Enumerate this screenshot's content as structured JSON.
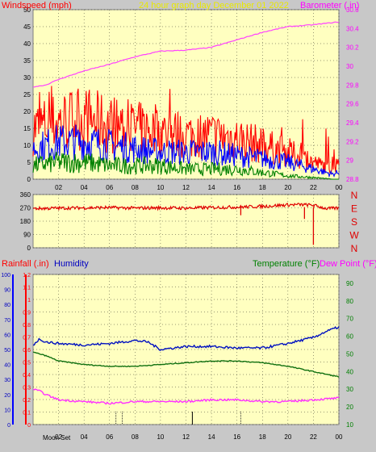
{
  "header": {
    "title": "24 hour graph day   December 01 2022",
    "windspeed_label": "Windspeed (mph)",
    "barometer_label": "Barometer (.in)"
  },
  "lower_header": {
    "rainfall_label": "Rainfall (.in)",
    "humidity_label": "Humidity",
    "temperature_label": "Temperature (°F)",
    "dewpoint_label": "Dew Point (°F)",
    "moon_label": "Moon Set"
  },
  "colors": {
    "plot_bg": "#ffffc0",
    "page_bg": "#c8c8c8",
    "wind_gust": "#ff0000",
    "wind_avg": "#0000ff",
    "wind_min": "#008000",
    "barometer": "#ff40ff",
    "wind_dir": "#e00000",
    "humidity": "#0010c0",
    "temperature": "#107010",
    "dewpoint": "#ff30ff",
    "rain_axis": "#ff0000",
    "grid": "#000000",
    "tick_label": "#000000"
  },
  "chart_data": [
    {
      "type": "line",
      "title": "24 hour graph day   December 01 2022",
      "xlabel": "",
      "x_tick_labels": [
        "02",
        "04",
        "06",
        "08",
        "10",
        "12",
        "14",
        "16",
        "18",
        "20",
        "22",
        "00"
      ],
      "x_hours": [
        2,
        4,
        6,
        8,
        10,
        12,
        14,
        16,
        18,
        20,
        22,
        24
      ],
      "xlim": [
        0,
        24
      ],
      "left_axis": {
        "label": "Windspeed (mph)",
        "ylim": [
          0,
          50
        ],
        "ticks": [
          0,
          5,
          10,
          15,
          20,
          25,
          30,
          35,
          40,
          45,
          50
        ]
      },
      "right_axis": {
        "label": "Barometer (.in)",
        "ylim": [
          28.8,
          30.6
        ],
        "ticks": [
          28.8,
          29,
          29.2,
          29.4,
          29.6,
          29.8,
          30,
          30.2,
          30.4,
          30.6
        ]
      },
      "series": [
        {
          "name": "Windspeed gust",
          "axis": "left",
          "color": "#ff0000",
          "hours": [
            0,
            2,
            4,
            6,
            8,
            10,
            12,
            14,
            16,
            18,
            20,
            22,
            23.5,
            24
          ],
          "values": [
            15,
            17,
            18,
            16,
            15,
            14,
            13,
            13,
            12,
            10,
            8,
            5,
            3,
            4
          ]
        },
        {
          "name": "Windspeed average",
          "axis": "left",
          "color": "#0000ff",
          "hours": [
            0,
            2,
            4,
            6,
            8,
            10,
            12,
            14,
            16,
            18,
            20,
            22,
            23.5,
            24
          ],
          "values": [
            9,
            11,
            11,
            10,
            9,
            8,
            8,
            8,
            7,
            6,
            5,
            3,
            1.5,
            2
          ]
        },
        {
          "name": "Windspeed minimum",
          "axis": "left",
          "color": "#008000",
          "hours": [
            0,
            2,
            4,
            6,
            8,
            10,
            12,
            14,
            16,
            18,
            20,
            22,
            23.5,
            24
          ],
          "values": [
            4,
            5,
            5,
            4,
            4,
            4,
            3,
            3,
            3,
            2,
            1,
            0.5,
            0,
            0
          ]
        },
        {
          "name": "Barometer",
          "axis": "right",
          "color": "#ff40ff",
          "hours": [
            0,
            1,
            2,
            4,
            6,
            8,
            10,
            12,
            14,
            16,
            18,
            20,
            22,
            24
          ],
          "values": [
            29.78,
            29.8,
            29.86,
            29.95,
            30.02,
            30.1,
            30.16,
            30.17,
            30.2,
            30.28,
            30.36,
            30.42,
            30.44,
            30.47
          ]
        }
      ]
    },
    {
      "type": "line",
      "xlim": [
        0,
        24
      ],
      "left_ticks": [
        0,
        90,
        180,
        270,
        360
      ],
      "right_labels": [
        "N",
        "W",
        "S",
        "E",
        "N"
      ],
      "ylim": [
        0,
        360
      ],
      "series": [
        {
          "name": "Wind direction",
          "color": "#e00000",
          "hours": [
            0,
            2,
            4,
            6,
            8,
            10,
            12,
            14,
            16,
            18,
            20,
            21,
            22,
            23,
            24
          ],
          "values": [
            265,
            268,
            270,
            272,
            268,
            270,
            268,
            272,
            275,
            280,
            290,
            292,
            288,
            265,
            268
          ],
          "spikes": [
            {
              "hour": 16.3,
              "value": 220
            },
            {
              "hour": 21.3,
              "value": 195
            },
            {
              "hour": 22.0,
              "value": 20
            }
          ]
        }
      ]
    },
    {
      "type": "line",
      "xlim": [
        0,
        24
      ],
      "x_tick_labels": [
        "02",
        "04",
        "06",
        "08",
        "10",
        "12",
        "14",
        "16",
        "18",
        "20",
        "22",
        "00"
      ],
      "x_hours": [
        2,
        4,
        6,
        8,
        10,
        12,
        14,
        16,
        18,
        20,
        22,
        24
      ],
      "rain_axis": {
        "label": "Rainfall (.in)",
        "ylim": [
          0,
          1.2
        ],
        "ticks": [
          0,
          0.1,
          0.2,
          0.3,
          0.4,
          0.5,
          0.6,
          0.7,
          0.8,
          0.9,
          1,
          1.1,
          1.2
        ]
      },
      "humidity_axis": {
        "label": "Humidity",
        "ylim": [
          0,
          100
        ],
        "ticks": [
          0,
          10,
          20,
          30,
          40,
          50,
          60,
          70,
          80,
          90,
          100
        ]
      },
      "temp_axis": {
        "label": "Temperature (°F)",
        "ylim": [
          10,
          95
        ],
        "ticks": [
          10,
          20,
          30,
          40,
          50,
          60,
          70,
          80,
          90
        ]
      },
      "series": [
        {
          "name": "Humidity",
          "axis": "humidity",
          "color": "#0010c0",
          "hours": [
            0,
            0.5,
            1,
            2,
            4,
            6,
            8,
            9,
            10,
            11,
            12,
            14,
            16,
            18,
            20,
            22,
            23,
            24
          ],
          "values": [
            53,
            57,
            55,
            54,
            53,
            54,
            56,
            55,
            50,
            51,
            52,
            52,
            51,
            51,
            54,
            58,
            62,
            65
          ]
        },
        {
          "name": "Temperature",
          "axis": "temp",
          "color": "#107010",
          "hours": [
            0,
            1,
            2,
            3,
            4,
            6,
            8,
            10,
            12,
            14,
            16,
            18,
            20,
            22,
            24
          ],
          "values": [
            51,
            49,
            46,
            45,
            44,
            43,
            43,
            44,
            45,
            46,
            46,
            45,
            43,
            40,
            37
          ]
        },
        {
          "name": "Dew Point",
          "axis": "temp",
          "color": "#ff30ff",
          "hours": [
            0,
            0.5,
            1,
            2,
            4,
            6,
            8,
            10,
            12,
            14,
            16,
            18,
            20,
            22,
            24
          ],
          "values": [
            30,
            29,
            27,
            24,
            23,
            22,
            23,
            23,
            23,
            24,
            24,
            23,
            23,
            24,
            25
          ]
        }
      ],
      "rain_total": 0,
      "markers": [
        {
          "hour": 6.5,
          "kind": "dots"
        },
        {
          "hour": 7.0,
          "kind": "dots"
        },
        {
          "hour": 12.5,
          "kind": "dark"
        },
        {
          "hour": 16.3,
          "kind": "dots"
        }
      ]
    }
  ]
}
